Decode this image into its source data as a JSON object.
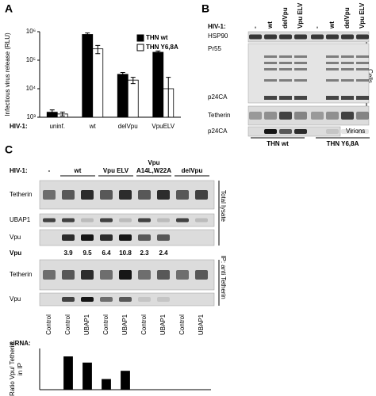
{
  "panels": {
    "a": {
      "letter": "A"
    },
    "b": {
      "letter": "B",
      "hiv_label": "HIV-1:",
      "lanes": [
        "-",
        "wt",
        "delVpu",
        "Vpu ELV",
        "-",
        "wt",
        "delVpu",
        "Vpu ELV"
      ],
      "rows": [
        "HSP90",
        "Pr55",
        "p24CA",
        "Tetherin",
        "p24CA"
      ],
      "cells_label": "Cells",
      "virions_label": "Virions",
      "groups": [
        "THN wt",
        "THN Y6,8A"
      ]
    },
    "c": {
      "letter": "C",
      "hiv_label": "HIV-1:",
      "groups": [
        [
          "-"
        ],
        [
          "wt"
        ],
        [
          "Vpu ELV"
        ],
        [
          "Vpu",
          "A14L,W22A"
        ],
        [
          "delVpu"
        ]
      ],
      "rows": [
        "Tetherin",
        "UBAP1",
        "Vpu",
        "Tetherin",
        "Vpu"
      ],
      "quant_label": "Vpu",
      "quant_values": [
        3.9,
        9.5,
        6.4,
        10.8,
        2.3,
        2.4
      ],
      "total_label": "Total lysate",
      "ip_label": "IP: anti Tetherin",
      "sirna_label": "siRNA:",
      "sirna": [
        "Control",
        "Control",
        "UBAP1",
        "Control",
        "UBAP1",
        "Control",
        "UBAP1",
        "Control",
        "UBAP1"
      ]
    }
  },
  "chart_data": [
    {
      "type": "bar",
      "ylabel": [
        "Infectious virus release (RLU)"
      ],
      "category_prefix": "HIV-1:",
      "categories": [
        "uninf.",
        "wt",
        "delVpu",
        "VpuELV"
      ],
      "series": [
        {
          "name": "THN wt",
          "color": "#000000",
          "values": [
            1500,
            800000,
            32000,
            190000
          ],
          "errors": [
            300,
            100000,
            5000,
            20000
          ]
        },
        {
          "name": "THN Y6,8A",
          "color": "#ffffff",
          "values": [
            1300,
            250000,
            20000,
            10000
          ],
          "errors": [
            200,
            80000,
            5000,
            15000
          ]
        }
      ],
      "log_scale": true,
      "ylim": [
        1000,
        1000000
      ],
      "yticks": [
        {
          "value": 1000,
          "label": "10³"
        },
        {
          "value": 10000,
          "label": "10⁴"
        },
        {
          "value": 100000,
          "label": "10⁵"
        },
        {
          "value": 1000000,
          "label": "10⁶"
        }
      ],
      "legend": "upper-right"
    },
    {
      "type": "bar",
      "ylabel": [
        "Ratio Vpu/ Tetherin",
        "in IP"
      ],
      "categories": [
        null,
        null,
        null,
        null,
        null,
        null,
        null,
        null,
        null
      ],
      "series": [
        {
          "color": "#000000",
          "values": [
            null,
            1.6,
            1.3,
            0.5,
            0.9,
            null,
            null,
            null,
            null
          ]
        }
      ],
      "ylim": [
        0,
        2
      ]
    }
  ]
}
